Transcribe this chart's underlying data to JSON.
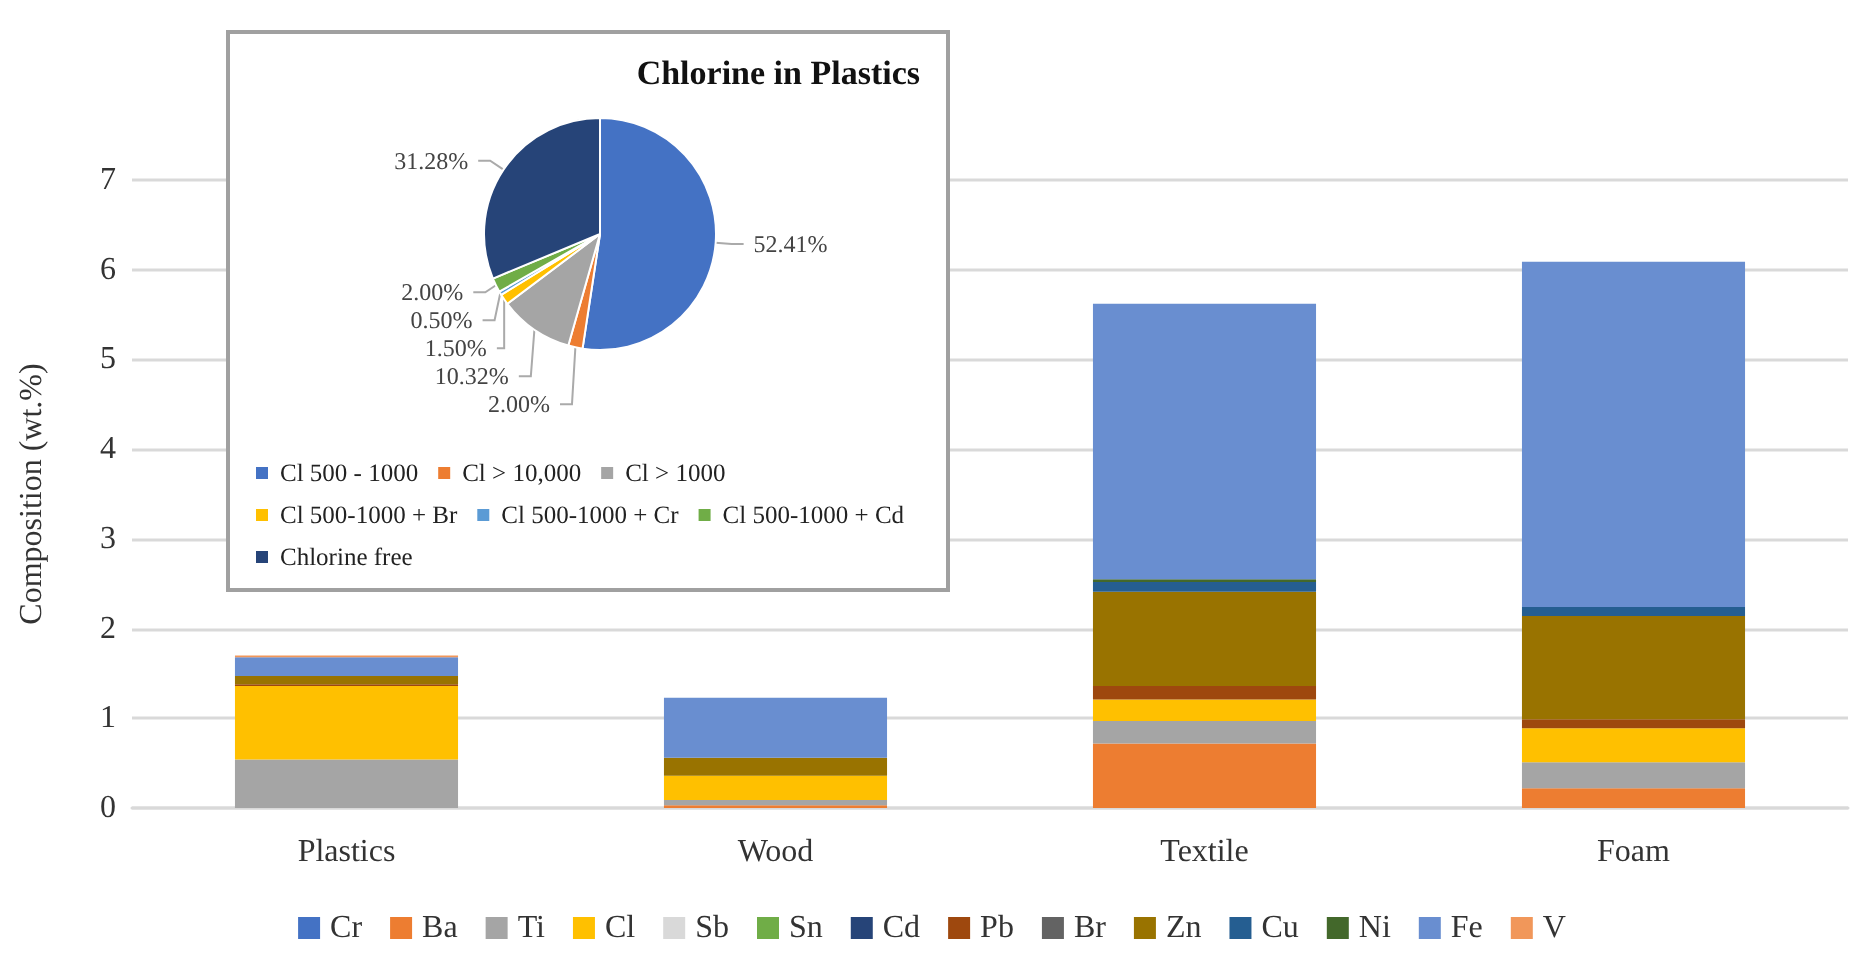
{
  "chart_data": [
    {
      "type": "bar",
      "stacked": true,
      "ylabel": "Composition (wt.%)",
      "categories": [
        "Plastics",
        "Wood",
        "Textile",
        "Foam"
      ],
      "ylim": [
        0,
        7
      ],
      "yticks": [
        0,
        1,
        2,
        3,
        4,
        5,
        6,
        7
      ],
      "grid": "y",
      "legend": "bottom",
      "series": [
        {
          "name": "Cr",
          "color": "#4472c4",
          "values": [
            null,
            null,
            null,
            null
          ]
        },
        {
          "name": "Ba",
          "color": "#ed7d31",
          "values": [
            null,
            0.03,
            0.72,
            0.22
          ]
        },
        {
          "name": "Ti",
          "color": "#a5a5a5",
          "values": [
            0.54,
            0.06,
            0.25,
            0.29
          ]
        },
        {
          "name": "Cl",
          "color": "#ffc000",
          "values": [
            0.82,
            0.27,
            0.24,
            0.38
          ]
        },
        {
          "name": "Sb",
          "color": "#d9d9d9",
          "values": [
            null,
            null,
            null,
            null
          ]
        },
        {
          "name": "Sn",
          "color": "#70ad47",
          "values": [
            null,
            null,
            null,
            null
          ]
        },
        {
          "name": "Cd",
          "color": "#264478",
          "values": [
            null,
            null,
            null,
            null
          ]
        },
        {
          "name": "Pb",
          "color": "#9e480e",
          "values": [
            0.02,
            null,
            0.15,
            0.1
          ]
        },
        {
          "name": "Br",
          "color": "#636363",
          "values": [
            null,
            null,
            null,
            null
          ]
        },
        {
          "name": "Zn",
          "color": "#997300",
          "values": [
            0.09,
            0.2,
            1.05,
            1.15
          ]
        },
        {
          "name": "Cu",
          "color": "#255e91",
          "values": [
            null,
            null,
            0.11,
            0.1
          ]
        },
        {
          "name": "Ni",
          "color": "#43682b",
          "values": [
            null,
            null,
            0.03,
            null
          ]
        },
        {
          "name": "Fe",
          "color": "#698ed0",
          "values": [
            0.21,
            0.67,
            3.07,
            3.85
          ]
        },
        {
          "name": "V",
          "color": "#f1975a",
          "values": [
            0.02,
            null,
            null,
            null
          ]
        }
      ]
    },
    {
      "type": "pie",
      "title": "Chlorine in Plastics",
      "legend": "bottom",
      "categories": [
        "Cl 500 - 1000",
        "Cl > 10,000",
        "Cl > 1000",
        "Cl 500-1000 + Br",
        "Cl 500-1000 + Cr",
        "Cl 500-1000 + Cd",
        "Chlorine free"
      ],
      "values": [
        52.41,
        2.0,
        10.32,
        1.5,
        0.5,
        2.0,
        31.28
      ],
      "value_labels": [
        "52.41%",
        "2.00%",
        "10.32%",
        "1.50%",
        "0.50%",
        "2.00%",
        "31.28%"
      ],
      "colors": [
        "#4472c4",
        "#ed7d31",
        "#a5a5a5",
        "#ffc000",
        "#5b9bd5",
        "#70ad47",
        "#264478"
      ]
    }
  ]
}
